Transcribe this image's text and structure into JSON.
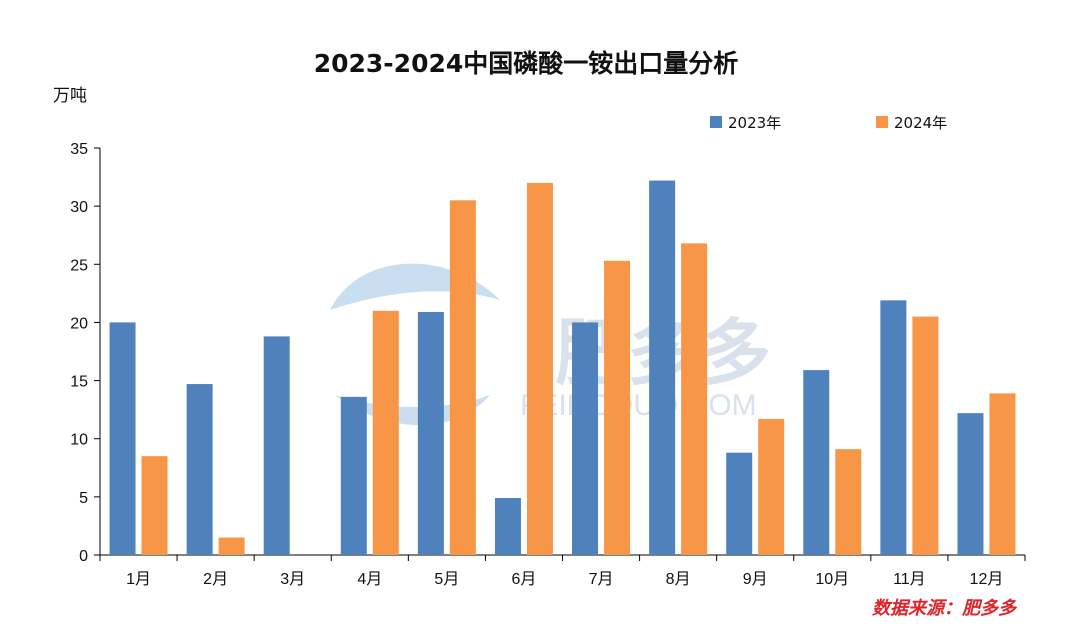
{
  "chart_data": {
    "type": "bar",
    "title": "2023-2024中国磷酸一铵出口量分析",
    "ylabel": "万吨",
    "xlabel": "",
    "categories": [
      "1月",
      "2月",
      "3月",
      "4月",
      "5月",
      "6月",
      "7月",
      "8月",
      "9月",
      "10月",
      "11月",
      "12月"
    ],
    "series": [
      {
        "name": "2023年",
        "color": "#4f81bd",
        "values": [
          20.0,
          14.7,
          18.8,
          13.6,
          20.9,
          4.9,
          20.0,
          32.2,
          8.8,
          15.9,
          21.9,
          12.2
        ]
      },
      {
        "name": "2024年",
        "color": "#f79646",
        "values": [
          8.5,
          1.5,
          0,
          21.0,
          30.5,
          32.0,
          25.3,
          26.8,
          11.7,
          9.1,
          20.5,
          13.9
        ]
      }
    ],
    "ylim": [
      0,
      35
    ],
    "yticks": [
      0,
      5,
      10,
      15,
      20,
      25,
      30,
      35
    ],
    "grid": false,
    "legend_position": "top-right"
  },
  "source": "数据来源：肥多多",
  "watermark": {
    "name": "肥多多",
    "domain": "FEIDODUO.COM"
  }
}
